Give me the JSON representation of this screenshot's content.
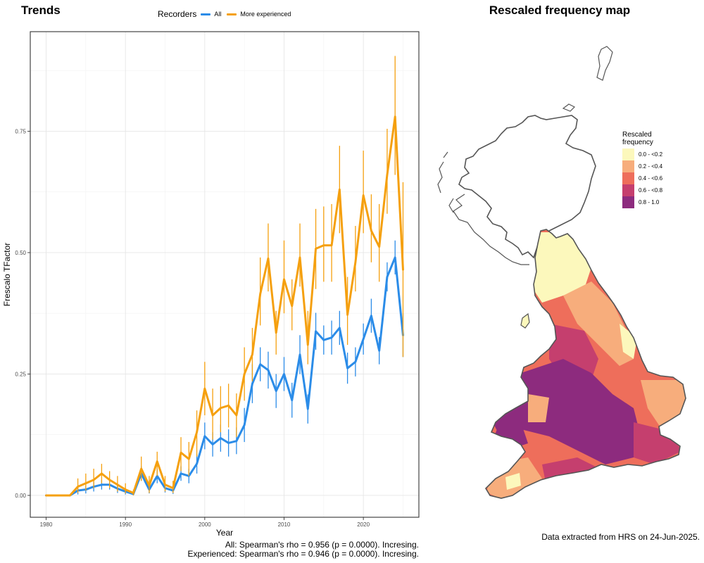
{
  "trends_panel": {
    "title": "Trends",
    "legend_title": "Recorders",
    "stats_all": "All: Spearman's rho = 0.956 (p = 0.0000). Incresing.",
    "stats_experienced": "Experienced: Spearman's rho = 0.946 (p = 0.0000). Incresing."
  },
  "map_panel": {
    "title": "Rescaled frequency map",
    "legend_title_line1": "Rescaled",
    "legend_title_line2": "frequency",
    "legend_items": [
      {
        "label": "0.0 - <0.2",
        "color": "#fcf8bc"
      },
      {
        "label": "0.2 - <0.4",
        "color": "#f7ad7c"
      },
      {
        "label": "0.4 - <0.6",
        "color": "#ee6e5b"
      },
      {
        "label": "0.6 - <0.8",
        "color": "#c53f6e"
      },
      {
        "label": "0.8 - 1.0",
        "color": "#8d2b7e"
      }
    ],
    "footnote": "Data extracted from HRS on 24-Jun-2025."
  },
  "chart_data": {
    "type": "line",
    "xlabel": "Year",
    "ylabel": "Frescalo TFactor",
    "xlim": [
      1978,
      2027
    ],
    "ylim": [
      -0.045,
      0.955
    ],
    "x_ticks": [
      1980,
      1990,
      2000,
      2010,
      2020
    ],
    "y_ticks": [
      0.0,
      0.25,
      0.5,
      0.75
    ],
    "y_tick_labels": [
      "0.00",
      "0.25",
      "0.50",
      "0.75"
    ],
    "legend_position": "top",
    "grid": true,
    "x": [
      1980,
      1981,
      1982,
      1983,
      1984,
      1985,
      1986,
      1987,
      1988,
      1989,
      1990,
      1991,
      1992,
      1993,
      1994,
      1995,
      1996,
      1997,
      1998,
      1999,
      2000,
      2001,
      2002,
      2003,
      2004,
      2005,
      2006,
      2007,
      2008,
      2009,
      2010,
      2011,
      2012,
      2013,
      2014,
      2015,
      2016,
      2017,
      2018,
      2019,
      2020,
      2021,
      2022,
      2023,
      2024,
      2025
    ],
    "series": [
      {
        "name": "All",
        "color": "#2b8ce8",
        "values": [
          0.0,
          0.0,
          0.0,
          0.0,
          0.01,
          0.012,
          0.018,
          0.022,
          0.022,
          0.014,
          0.008,
          0.003,
          0.045,
          0.012,
          0.04,
          0.015,
          0.01,
          0.045,
          0.04,
          0.065,
          0.122,
          0.105,
          0.118,
          0.108,
          0.112,
          0.145,
          0.23,
          0.27,
          0.258,
          0.215,
          0.25,
          0.196,
          0.29,
          0.178,
          0.338,
          0.32,
          0.325,
          0.345,
          0.262,
          0.275,
          0.322,
          0.37,
          0.298,
          0.45,
          0.49,
          0.33
        ],
        "lower": [
          0.0,
          0.0,
          0.0,
          0.0,
          0.002,
          0.004,
          0.008,
          0.012,
          0.012,
          0.005,
          0.002,
          0.0,
          0.03,
          0.004,
          0.025,
          0.006,
          0.003,
          0.03,
          0.025,
          0.045,
          0.095,
          0.08,
          0.09,
          0.08,
          0.085,
          0.11,
          0.19,
          0.235,
          0.22,
          0.18,
          0.215,
          0.16,
          0.25,
          0.148,
          0.3,
          0.29,
          0.29,
          0.31,
          0.23,
          0.245,
          0.29,
          0.335,
          0.27,
          0.42,
          0.455,
          0.285
        ],
        "upper": [
          0.0,
          0.0,
          0.0,
          0.0,
          0.018,
          0.02,
          0.028,
          0.032,
          0.032,
          0.023,
          0.014,
          0.006,
          0.06,
          0.02,
          0.055,
          0.024,
          0.017,
          0.06,
          0.055,
          0.085,
          0.15,
          0.13,
          0.146,
          0.136,
          0.14,
          0.18,
          0.27,
          0.305,
          0.296,
          0.25,
          0.285,
          0.232,
          0.33,
          0.208,
          0.376,
          0.35,
          0.36,
          0.38,
          0.294,
          0.305,
          0.354,
          0.405,
          0.326,
          0.48,
          0.525,
          0.375
        ]
      },
      {
        "name": "More experienced",
        "color": "#f5a00f",
        "values": [
          0.0,
          0.0,
          0.0,
          0.0,
          0.018,
          0.025,
          0.032,
          0.045,
          0.032,
          0.022,
          0.012,
          0.005,
          0.055,
          0.02,
          0.07,
          0.022,
          0.015,
          0.088,
          0.075,
          0.13,
          0.22,
          0.165,
          0.18,
          0.185,
          0.165,
          0.25,
          0.29,
          0.415,
          0.488,
          0.335,
          0.445,
          0.39,
          0.49,
          0.31,
          0.508,
          0.515,
          0.515,
          0.63,
          0.372,
          0.48,
          0.618,
          0.545,
          0.512,
          0.66,
          0.78,
          0.465
        ],
        "lower": [
          0.0,
          0.0,
          0.0,
          0.0,
          0.005,
          0.01,
          0.015,
          0.025,
          0.015,
          0.008,
          0.004,
          0.0,
          0.03,
          0.005,
          0.04,
          0.008,
          0.005,
          0.05,
          0.04,
          0.08,
          0.165,
          0.115,
          0.13,
          0.14,
          0.12,
          0.195,
          0.235,
          0.35,
          0.42,
          0.29,
          0.375,
          0.34,
          0.43,
          0.27,
          0.425,
          0.44,
          0.44,
          0.54,
          0.31,
          0.42,
          0.54,
          0.48,
          0.44,
          0.58,
          0.66,
          0.285
        ],
        "upper": [
          0.0,
          0.0,
          0.0,
          0.0,
          0.035,
          0.045,
          0.055,
          0.065,
          0.05,
          0.04,
          0.025,
          0.012,
          0.08,
          0.04,
          0.09,
          0.04,
          0.03,
          0.12,
          0.11,
          0.175,
          0.275,
          0.22,
          0.225,
          0.23,
          0.21,
          0.305,
          0.345,
          0.49,
          0.56,
          0.38,
          0.525,
          0.445,
          0.56,
          0.38,
          0.59,
          0.595,
          0.6,
          0.72,
          0.45,
          0.555,
          0.71,
          0.62,
          0.6,
          0.755,
          0.905,
          0.645
        ]
      }
    ]
  }
}
